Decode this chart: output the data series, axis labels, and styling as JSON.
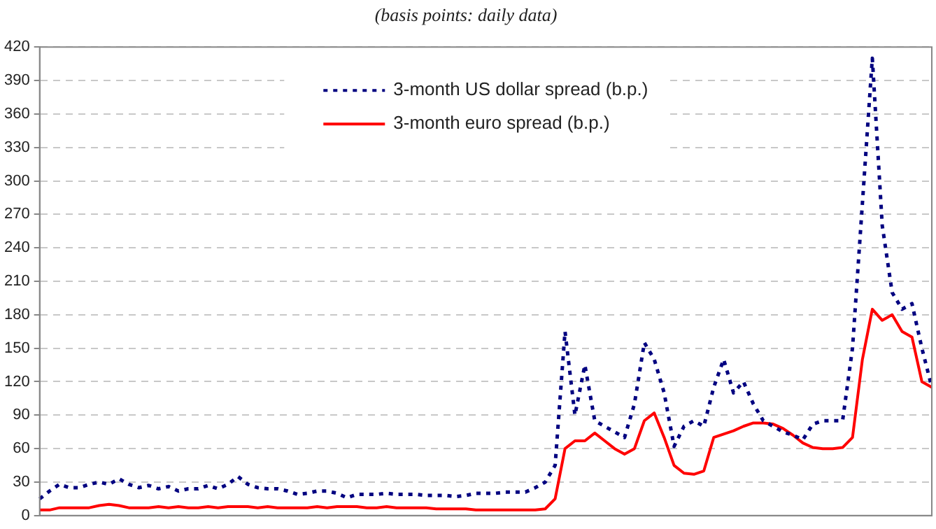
{
  "chart_data": {
    "type": "line",
    "subtitle": "(basis points: daily data)",
    "categories": [
      null,
      null,
      null,
      null,
      null,
      null,
      null,
      null,
      null,
      null,
      null,
      null,
      null,
      null,
      null,
      null,
      null,
      null,
      null,
      null,
      null,
      null,
      null,
      null,
      null,
      null,
      null,
      null,
      null,
      null,
      null,
      null,
      null,
      null,
      null,
      null,
      null,
      null,
      null,
      null,
      null,
      null,
      null,
      null,
      null,
      null,
      null,
      null,
      null,
      null,
      null,
      null,
      null,
      null,
      null,
      null,
      null,
      null,
      null,
      null,
      null,
      null,
      null,
      null,
      null,
      null,
      null,
      null,
      null,
      null,
      null,
      null,
      null,
      null,
      null,
      null,
      null,
      null,
      null,
      null,
      null,
      null,
      null,
      null,
      null,
      null,
      null,
      null,
      null,
      null,
      null
    ],
    "series": [
      {
        "name": "3-month US dollar spread (b.p.)",
        "color": "#000080",
        "line_style": "dotted",
        "values": [
          15,
          22,
          28,
          25,
          25,
          28,
          30,
          28,
          33,
          28,
          25,
          27,
          24,
          26,
          22,
          24,
          24,
          27,
          24,
          28,
          35,
          28,
          25,
          24,
          24,
          22,
          19,
          20,
          22,
          22,
          20,
          16,
          19,
          19,
          19,
          20,
          19,
          19,
          19,
          18,
          18,
          18,
          17,
          18,
          20,
          20,
          20,
          21,
          21,
          21,
          25,
          30,
          45,
          165,
          90,
          135,
          85,
          80,
          75,
          70,
          100,
          155,
          140,
          110,
          62,
          80,
          85,
          80,
          115,
          140,
          110,
          120,
          100,
          85,
          80,
          75,
          72,
          68,
          82,
          85,
          85,
          85,
          150,
          280,
          410,
          260,
          200,
          185,
          190,
          150,
          115
        ]
      },
      {
        "name": "3-month euro spread (b.p.)",
        "color": "#ff0000",
        "line_style": "solid",
        "values": [
          5,
          5,
          7,
          7,
          7,
          7,
          9,
          10,
          9,
          7,
          7,
          7,
          8,
          7,
          8,
          7,
          7,
          8,
          7,
          8,
          8,
          8,
          7,
          8,
          7,
          7,
          7,
          7,
          8,
          7,
          8,
          8,
          8,
          7,
          7,
          8,
          7,
          7,
          7,
          7,
          6,
          6,
          6,
          6,
          5,
          5,
          5,
          5,
          5,
          5,
          5,
          6,
          15,
          60,
          67,
          67,
          74,
          67,
          60,
          55,
          60,
          85,
          92,
          70,
          45,
          38,
          37,
          40,
          70,
          73,
          76,
          80,
          83,
          83,
          82,
          78,
          72,
          65,
          61,
          60,
          60,
          61,
          70,
          140,
          185,
          175,
          180,
          165,
          160,
          120,
          115
        ]
      }
    ],
    "ylim": [
      0,
      420
    ],
    "yticks": [
      0,
      30,
      60,
      90,
      120,
      150,
      180,
      210,
      240,
      270,
      300,
      330,
      360,
      390,
      420
    ],
    "grid": "y",
    "legend": "top",
    "marker": "none",
    "tick_labels": "y"
  }
}
